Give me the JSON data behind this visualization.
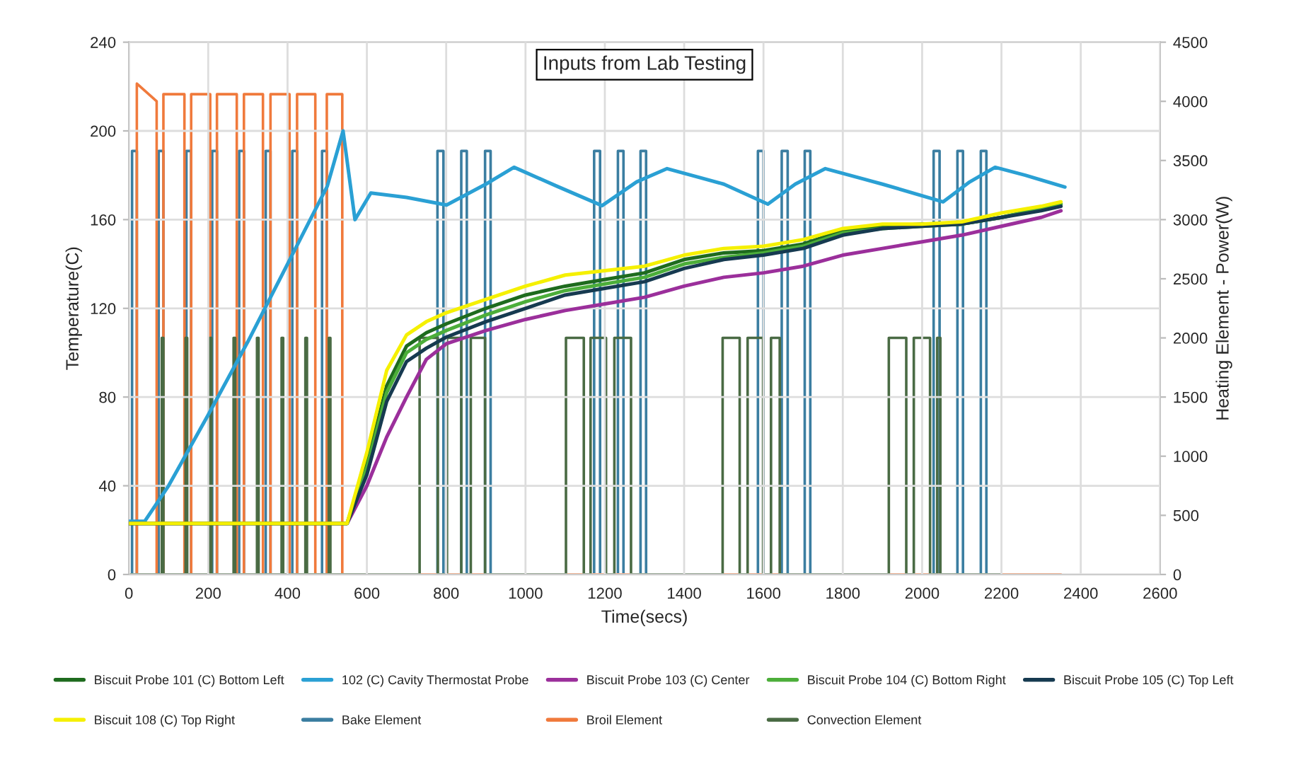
{
  "chart_data": {
    "type": "line",
    "title": "Inputs from Lab Testing",
    "xlabel": "Time(secs)",
    "ylabel": "Temperature(C)",
    "y2label": "Heating Element - Power(W)",
    "xlim": [
      0,
      2600
    ],
    "xticks": [
      0,
      200,
      400,
      600,
      800,
      1000,
      1200,
      1400,
      1600,
      1800,
      2000,
      2200,
      2400,
      2600
    ],
    "ylim": [
      0,
      240
    ],
    "yticks": [
      0,
      40,
      80,
      120,
      160,
      200,
      240
    ],
    "y2lim": [
      0,
      4500
    ],
    "y2ticks": [
      0,
      500,
      1000,
      1500,
      2000,
      2500,
      3000,
      3500,
      4000,
      4500
    ],
    "grid": true,
    "legend": "bottom",
    "marker": "none",
    "line_style": "solid",
    "series": [
      {
        "name": "Biscuit Probe 101 (C) Bottom Left",
        "color": "#1e6b1e",
        "x": [
          0,
          300,
          550,
          600,
          650,
          700,
          750,
          800,
          900,
          1000,
          1100,
          1200,
          1300,
          1400,
          1500,
          1600,
          1700,
          1800,
          1900,
          2000,
          2100,
          2200,
          2300,
          2350
        ],
        "values": [
          23,
          23,
          23,
          50,
          85,
          103,
          109,
          113,
          120,
          126,
          130,
          133,
          136,
          142,
          145,
          146,
          149,
          155,
          157,
          158,
          158,
          161,
          165,
          167
        ]
      },
      {
        "name": "102 (C) Cavity Thermostat Probe",
        "color": "#2aa0d4",
        "x": [
          0,
          40,
          100,
          200,
          300,
          400,
          500,
          540,
          570,
          610,
          700,
          801,
          900,
          971,
          1080,
          1193,
          1280,
          1357,
          1500,
          1611,
          1680,
          1756,
          1900,
          2053,
          2120,
          2184,
          2260,
          2360
        ],
        "values": [
          24,
          24,
          40,
          72,
          105,
          140,
          175,
          200,
          160,
          172,
          170,
          166.6,
          176,
          183.6,
          175,
          166.3,
          177,
          183,
          176,
          167,
          176,
          183,
          176,
          168,
          177,
          183.6,
          180,
          174.7
        ]
      },
      {
        "name": "Biscuit Probe 103 (C) Center",
        "color": "#9b2f9b",
        "x": [
          0,
          300,
          550,
          600,
          650,
          700,
          750,
          800,
          900,
          1000,
          1100,
          1200,
          1300,
          1400,
          1500,
          1600,
          1700,
          1800,
          1900,
          2000,
          2100,
          2200,
          2300,
          2350
        ],
        "values": [
          23,
          23,
          23,
          40,
          62,
          80,
          97,
          104,
          110,
          115,
          119,
          122,
          125,
          130,
          134,
          136,
          139,
          144,
          147,
          150,
          153,
          157,
          161,
          164
        ]
      },
      {
        "name": "Biscuit Probe 104 (C) Bottom Right",
        "color": "#4cae3a",
        "x": [
          0,
          300,
          550,
          600,
          650,
          700,
          750,
          800,
          900,
          1000,
          1100,
          1200,
          1300,
          1400,
          1500,
          1600,
          1700,
          1800,
          1900,
          2000,
          2100,
          2200,
          2300,
          2350
        ],
        "values": [
          23,
          23,
          23,
          48,
          82,
          100,
          106,
          110,
          117,
          123,
          128,
          131,
          134,
          140,
          143,
          145,
          148,
          154,
          156,
          157,
          158,
          161,
          165,
          167
        ]
      },
      {
        "name": "Biscuit Probe 105 (C) Top Left",
        "color": "#163a50",
        "x": [
          0,
          300,
          550,
          600,
          650,
          700,
          750,
          800,
          900,
          1000,
          1100,
          1200,
          1300,
          1400,
          1500,
          1600,
          1700,
          1800,
          1900,
          2000,
          2100,
          2200,
          2300,
          2350
        ],
        "values": [
          23,
          23,
          23,
          45,
          78,
          96,
          102,
          107,
          114,
          120,
          126,
          129,
          132,
          138,
          142,
          144,
          147,
          153,
          156,
          157,
          158,
          161,
          164,
          166
        ]
      },
      {
        "name": "Biscuit 108 (C) Top Right",
        "color": "#f5f000",
        "x": [
          0,
          300,
          550,
          600,
          650,
          700,
          750,
          800,
          900,
          1000,
          1100,
          1200,
          1300,
          1400,
          1500,
          1600,
          1700,
          1800,
          1900,
          2000,
          2100,
          2200,
          2300,
          2350
        ],
        "values": [
          23,
          23,
          23,
          55,
          92,
          108,
          114,
          118,
          124,
          130,
          135,
          137,
          139,
          144,
          147,
          148,
          151,
          156,
          158,
          158,
          159,
          163,
          166,
          168
        ]
      },
      {
        "name": "Bake Element",
        "color": "#3b7ea1",
        "axis": "y2",
        "x": [
          0,
          8,
          8,
          20,
          20,
          75,
          75,
          87,
          87,
          145,
          145,
          157,
          157,
          210,
          210,
          222,
          222,
          278,
          278,
          290,
          290,
          345,
          345,
          357,
          357,
          412,
          412,
          424,
          424,
          487,
          487,
          499,
          499,
          778,
          778,
          793,
          793,
          838,
          838,
          852,
          852,
          898,
          898,
          912,
          912,
          1173,
          1173,
          1188,
          1188,
          1233,
          1233,
          1247,
          1247,
          1290,
          1290,
          1304,
          1304,
          1586,
          1586,
          1600,
          1600,
          1646,
          1646,
          1661,
          1661,
          1704,
          1704,
          1718,
          1718,
          2029,
          2029,
          2044,
          2044,
          2089,
          2089,
          2103,
          2103,
          2148,
          2148,
          2162,
          2162,
          2200
        ],
        "values": [
          0,
          0,
          3580,
          3580,
          0,
          0,
          3580,
          3580,
          0,
          0,
          3580,
          3580,
          0,
          0,
          3580,
          3580,
          0,
          0,
          3580,
          3580,
          0,
          0,
          3580,
          3580,
          0,
          0,
          3580,
          3580,
          0,
          0,
          3580,
          3580,
          0,
          0,
          3580,
          3580,
          0,
          0,
          3580,
          3580,
          0,
          0,
          3580,
          3580,
          0,
          0,
          3580,
          3580,
          0,
          0,
          3580,
          3580,
          0,
          0,
          3580,
          3580,
          0,
          0,
          3580,
          3580,
          0,
          0,
          3580,
          3580,
          0,
          0,
          3580,
          3580,
          0,
          0,
          3580,
          3580,
          0,
          0,
          3580,
          3580,
          0,
          0,
          3580,
          3580,
          0,
          0
        ]
      },
      {
        "name": "Broil Element",
        "color": "#f07a3c",
        "axis": "y2",
        "x": [
          0,
          20,
          20,
          70,
          70,
          87,
          87,
          140,
          140,
          157,
          157,
          205,
          205,
          222,
          222,
          272,
          272,
          290,
          290,
          338,
          338,
          357,
          357,
          405,
          405,
          424,
          424,
          470,
          470,
          499,
          499,
          538,
          538,
          2350
        ],
        "values": [
          0,
          0,
          4150,
          4000,
          0,
          0,
          4060,
          4060,
          0,
          0,
          4060,
          4060,
          0,
          0,
          4060,
          4060,
          0,
          0,
          4060,
          4060,
          0,
          0,
          4060,
          4060,
          0,
          0,
          4060,
          4060,
          0,
          0,
          4060,
          4060,
          0,
          0
        ]
      },
      {
        "name": "Convection Element",
        "color": "#4a6b44",
        "axis": "y2",
        "x": [
          0,
          83,
          83,
          87,
          87,
          143,
          143,
          147,
          147,
          204,
          204,
          208,
          208,
          264,
          264,
          268,
          268,
          323,
          323,
          327,
          327,
          385,
          385,
          389,
          389,
          445,
          445,
          449,
          449,
          504,
          504,
          508,
          508,
          733,
          733,
          779,
          779,
          802,
          802,
          838,
          838,
          862,
          862,
          898,
          898,
          1102,
          1102,
          1147,
          1147,
          1164,
          1164,
          1203,
          1203,
          1224,
          1224,
          1266,
          1266,
          1497,
          1497,
          1540,
          1540,
          1560,
          1560,
          1599,
          1599,
          1619,
          1619,
          1641,
          1641,
          1916,
          1916,
          1960,
          1960,
          1979,
          1979,
          2020,
          2020,
          2038,
          2038,
          2046,
          2046,
          2200
        ],
        "values": [
          0,
          0,
          2000,
          2000,
          0,
          0,
          2000,
          2000,
          0,
          0,
          2000,
          2000,
          0,
          0,
          2000,
          2000,
          0,
          0,
          2000,
          2000,
          0,
          0,
          2000,
          2000,
          0,
          0,
          2000,
          2000,
          0,
          0,
          2000,
          2000,
          0,
          0,
          2000,
          2000,
          0,
          0,
          2000,
          2000,
          0,
          0,
          2000,
          2000,
          0,
          0,
          2000,
          2000,
          0,
          0,
          2000,
          2000,
          0,
          0,
          2000,
          2000,
          0,
          0,
          2000,
          2000,
          0,
          0,
          2000,
          2000,
          0,
          0,
          2000,
          2000,
          0,
          0,
          2000,
          2000,
          0,
          0,
          2000,
          2000,
          0,
          0,
          2000,
          2000,
          0,
          0
        ]
      }
    ]
  }
}
